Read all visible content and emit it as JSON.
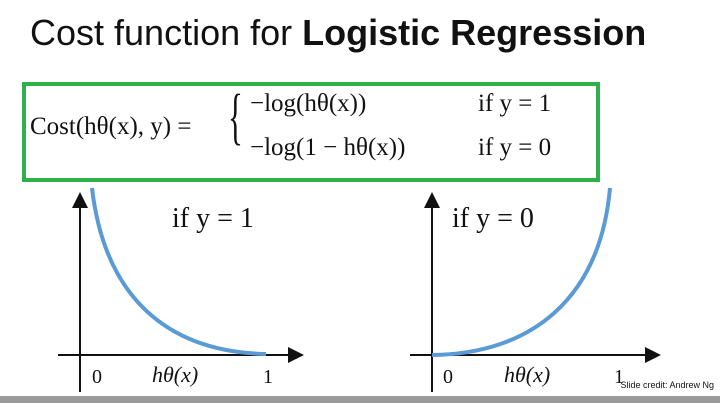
{
  "title": {
    "prefix": "Cost function for ",
    "bold": "Logistic Regression"
  },
  "formula": {
    "lhs": "Cost(hθ(x), y) =",
    "case1_expr": "−log(hθ(x))",
    "case1_cond": "if y = 1",
    "case0_expr": "−log(1 − hθ(x))",
    "case0_cond": "if y = 0"
  },
  "plots": [
    {
      "label": "if y = 1",
      "x_tick_0": "0",
      "x_label": "hθ(x)",
      "x_tick_1": "1"
    },
    {
      "label": "if y = 0",
      "x_tick_0": "0",
      "x_label": "hθ(x)",
      "x_tick_1": "1"
    }
  ],
  "credit": "Slide credit: Andrew Ng",
  "colors": {
    "box": "#2fb04a",
    "curve": "#5b9bd5"
  }
}
